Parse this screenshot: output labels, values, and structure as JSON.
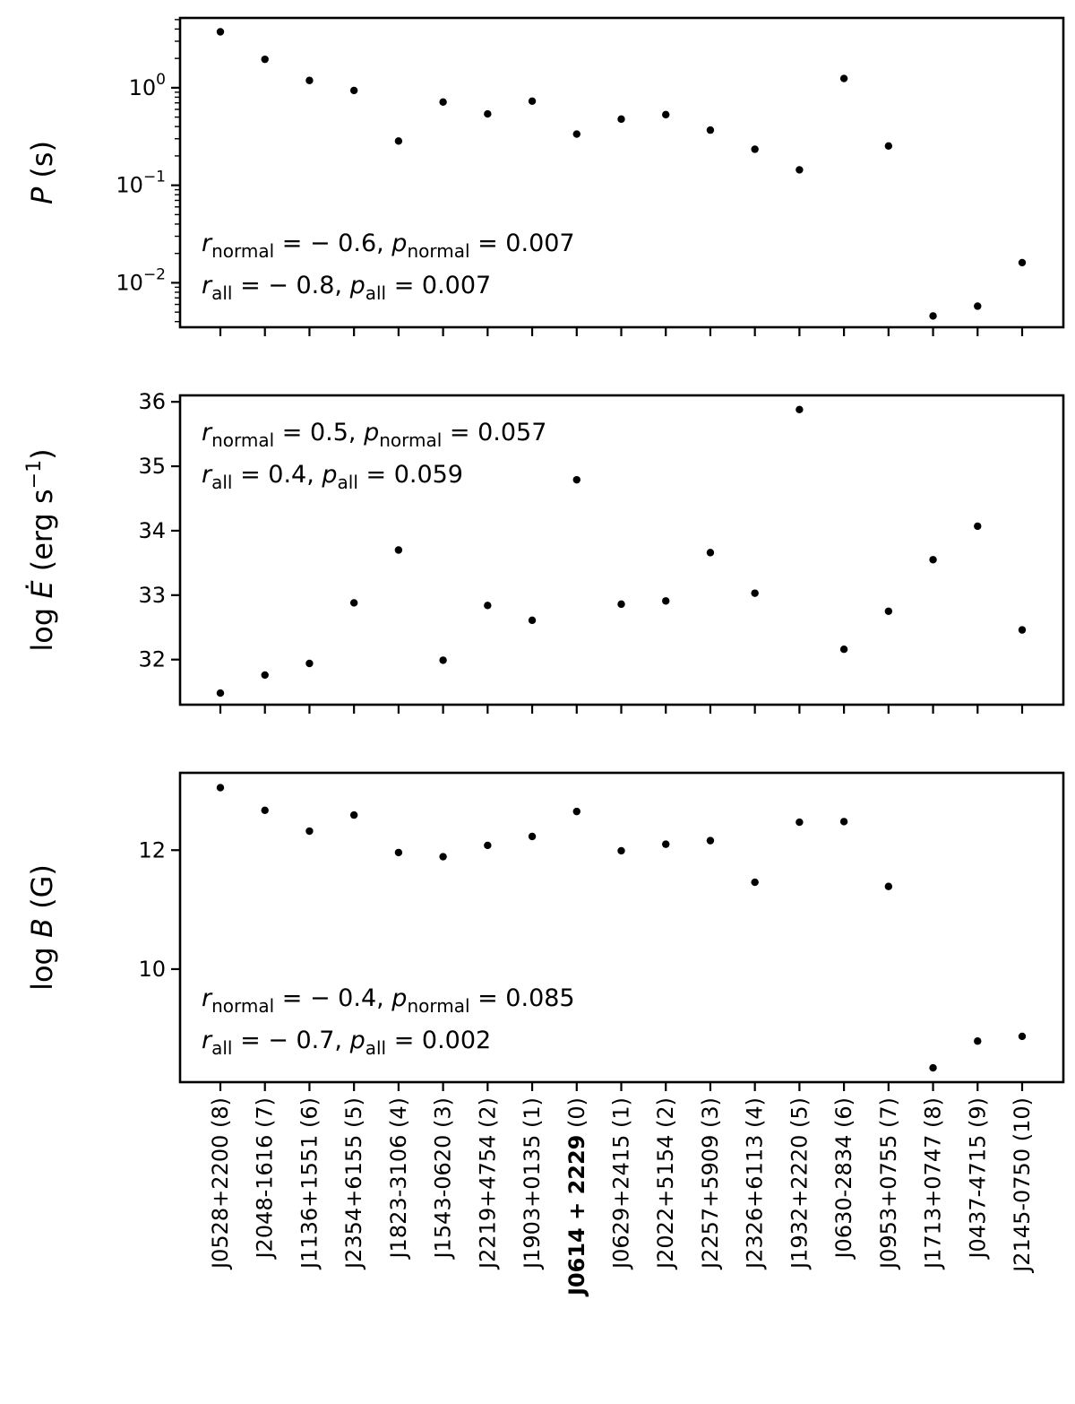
{
  "chart_data": {
    "type": "scatter",
    "categories": [
      "J0528+2200 (8)",
      "J2048-1616 (7)",
      "J1136+1551 (6)",
      "J2354+6155 (5)",
      "J1823-3106 (4)",
      "J1543-0620 (3)",
      "J2219+4754 (2)",
      "J1903+0135 (1)",
      "J0614 + 2229",
      "J0629+2415 (1)",
      "J2022+5154 (2)",
      "J2257+5909 (3)",
      "J2326+6113 (4)",
      "J1932+2220 (5)",
      "J0630-2834 (6)",
      "J0953+0755 (7)",
      "J1713+0747 (8)",
      "J0437-4715 (9)",
      "J2145-0750 (10)"
    ],
    "highlighted_category_index": 8,
    "highlighted_category_suffix": "(0)",
    "panels": [
      {
        "ylabel": "P (s)",
        "yscale": "log",
        "ylim": [
          0.0035,
          5.2
        ],
        "yticks": [
          0.01,
          0.1,
          1
        ],
        "ytick_labels": [
          {
            "base": "10",
            "exp": "−2"
          },
          {
            "base": "10",
            "exp": "−1"
          },
          {
            "base": "10",
            "exp": "0"
          }
        ],
        "values": [
          3.745,
          1.958,
          1.188,
          0.938,
          0.284,
          0.714,
          0.539,
          0.729,
          0.335,
          0.477,
          0.53,
          0.368,
          0.234,
          0.144,
          1.244,
          0.253,
          0.00457,
          0.00576,
          0.0161
        ],
        "annotation": {
          "position": "bottom-left",
          "line1": {
            "r": "= − 0.6,",
            "p": "= 0.007"
          },
          "line2": {
            "r": "= − 0.8,",
            "p": "= 0.007"
          }
        }
      },
      {
        "ylabel": "log Ė (erg s−1)",
        "yscale": "linear",
        "ylim": [
          31.3,
          36.1
        ],
        "yticks": [
          32,
          33,
          34,
          35,
          36
        ],
        "ytick_labels": [
          "32",
          "33",
          "34",
          "35",
          "36"
        ],
        "values": [
          31.48,
          31.76,
          31.94,
          32.88,
          33.7,
          31.99,
          32.84,
          32.61,
          34.79,
          32.86,
          32.91,
          33.66,
          33.03,
          35.88,
          32.16,
          32.75,
          33.55,
          34.07,
          32.46
        ],
        "annotation": {
          "position": "top-left",
          "line1": {
            "r": "= 0.5,",
            "p": "= 0.057"
          },
          "line2": {
            "r": "= 0.4,",
            "p": "= 0.059"
          }
        }
      },
      {
        "ylabel": "log B (G)",
        "yscale": "linear",
        "ylim": [
          8.1,
          13.3
        ],
        "yticks": [
          10,
          12
        ],
        "ytick_labels": [
          "10",
          "12"
        ],
        "values": [
          13.05,
          12.67,
          12.32,
          12.59,
          11.96,
          11.89,
          12.08,
          12.23,
          12.65,
          11.99,
          12.1,
          12.16,
          11.46,
          12.47,
          12.48,
          11.39,
          8.34,
          8.79,
          8.87
        ],
        "annotation": {
          "position": "bottom-left",
          "line1": {
            "r": "= − 0.4,",
            "p": "= 0.085"
          },
          "line2": {
            "r": "= − 0.7,",
            "p": "= 0.002"
          }
        }
      }
    ],
    "annotation_subscripts": {
      "line1": "normal",
      "line2": "all"
    },
    "grid": false,
    "legend": false,
    "marker_color": "#000000"
  }
}
